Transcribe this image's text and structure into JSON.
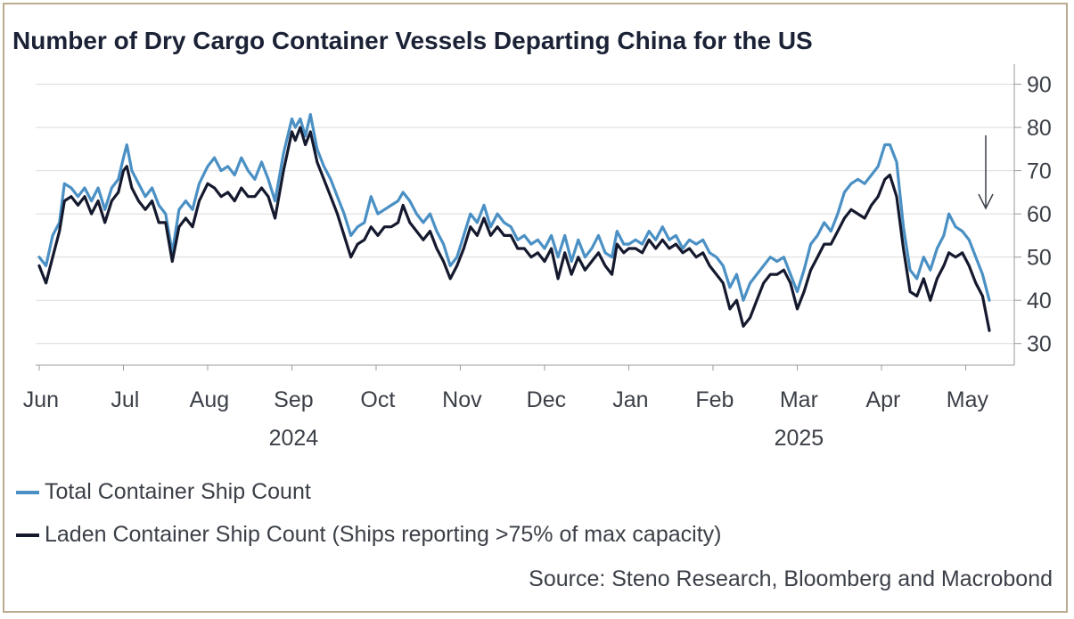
{
  "chart_data": {
    "type": "line",
    "title": "Number of Dry Cargo Container Vessels Departing China for the US",
    "source": "Source: Steno Research, Bloomberg and Macrobond",
    "ylim": [
      25,
      93
    ],
    "y_ticks": [
      30,
      40,
      50,
      60,
      70,
      80,
      90
    ],
    "x_ticks": [
      "Jun",
      "Jul",
      "Aug",
      "Sep",
      "Oct",
      "Nov",
      "Dec",
      "Jan",
      "Feb",
      "Mar",
      "Apr",
      "May"
    ],
    "year_labels": [
      {
        "label": "2024",
        "month_index": 3
      },
      {
        "label": "2025",
        "month_index": 9
      }
    ],
    "x_unit": "months since Jun 1, 2024",
    "series": [
      {
        "name": "Total Container Ship Count",
        "color": "#4a90c4",
        "points": [
          [
            0.0,
            50
          ],
          [
            0.08,
            48
          ],
          [
            0.16,
            55
          ],
          [
            0.24,
            58
          ],
          [
            0.3,
            67
          ],
          [
            0.38,
            66
          ],
          [
            0.46,
            64
          ],
          [
            0.54,
            66
          ],
          [
            0.62,
            63
          ],
          [
            0.7,
            66
          ],
          [
            0.78,
            61
          ],
          [
            0.86,
            66
          ],
          [
            0.94,
            68
          ],
          [
            1.0,
            73
          ],
          [
            1.04,
            76
          ],
          [
            1.1,
            70
          ],
          [
            1.18,
            67
          ],
          [
            1.26,
            64
          ],
          [
            1.34,
            66
          ],
          [
            1.42,
            62
          ],
          [
            1.5,
            60
          ],
          [
            1.58,
            51
          ],
          [
            1.66,
            61
          ],
          [
            1.74,
            63
          ],
          [
            1.82,
            61
          ],
          [
            1.9,
            67
          ],
          [
            2.0,
            71
          ],
          [
            2.08,
            73
          ],
          [
            2.16,
            70
          ],
          [
            2.24,
            71
          ],
          [
            2.32,
            69
          ],
          [
            2.4,
            73
          ],
          [
            2.48,
            70
          ],
          [
            2.56,
            68
          ],
          [
            2.64,
            72
          ],
          [
            2.72,
            68
          ],
          [
            2.8,
            63
          ],
          [
            2.9,
            74
          ],
          [
            3.0,
            82
          ],
          [
            3.04,
            80
          ],
          [
            3.1,
            82
          ],
          [
            3.16,
            78
          ],
          [
            3.22,
            83
          ],
          [
            3.3,
            75
          ],
          [
            3.38,
            71
          ],
          [
            3.46,
            68
          ],
          [
            3.54,
            64
          ],
          [
            3.62,
            60
          ],
          [
            3.7,
            55
          ],
          [
            3.78,
            57
          ],
          [
            3.86,
            58
          ],
          [
            3.94,
            64
          ],
          [
            4.02,
            60
          ],
          [
            4.1,
            61
          ],
          [
            4.18,
            62
          ],
          [
            4.26,
            63
          ],
          [
            4.32,
            65
          ],
          [
            4.4,
            63
          ],
          [
            4.48,
            60
          ],
          [
            4.56,
            58
          ],
          [
            4.64,
            60
          ],
          [
            4.72,
            56
          ],
          [
            4.8,
            53
          ],
          [
            4.88,
            48
          ],
          [
            4.96,
            50
          ],
          [
            5.04,
            55
          ],
          [
            5.12,
            60
          ],
          [
            5.2,
            58
          ],
          [
            5.28,
            62
          ],
          [
            5.36,
            57
          ],
          [
            5.44,
            60
          ],
          [
            5.52,
            58
          ],
          [
            5.6,
            57
          ],
          [
            5.68,
            54
          ],
          [
            5.76,
            55
          ],
          [
            5.84,
            53
          ],
          [
            5.92,
            54
          ],
          [
            6.0,
            52
          ],
          [
            6.08,
            55
          ],
          [
            6.16,
            50
          ],
          [
            6.24,
            55
          ],
          [
            6.32,
            49
          ],
          [
            6.4,
            54
          ],
          [
            6.48,
            50
          ],
          [
            6.56,
            52
          ],
          [
            6.64,
            55
          ],
          [
            6.72,
            51
          ],
          [
            6.8,
            50
          ],
          [
            6.86,
            56
          ],
          [
            6.94,
            53
          ],
          [
            7.0,
            53
          ],
          [
            7.08,
            54
          ],
          [
            7.16,
            53
          ],
          [
            7.24,
            56
          ],
          [
            7.32,
            54
          ],
          [
            7.4,
            57
          ],
          [
            7.48,
            54
          ],
          [
            7.56,
            55
          ],
          [
            7.64,
            52
          ],
          [
            7.72,
            54
          ],
          [
            7.8,
            53
          ],
          [
            7.88,
            54
          ],
          [
            7.96,
            51
          ],
          [
            8.04,
            50
          ],
          [
            8.12,
            48
          ],
          [
            8.2,
            43
          ],
          [
            8.28,
            46
          ],
          [
            8.36,
            40
          ],
          [
            8.44,
            44
          ],
          [
            8.52,
            46
          ],
          [
            8.6,
            48
          ],
          [
            8.68,
            50
          ],
          [
            8.76,
            49
          ],
          [
            8.84,
            50
          ],
          [
            8.92,
            46
          ],
          [
            9.0,
            42
          ],
          [
            9.08,
            47
          ],
          [
            9.16,
            53
          ],
          [
            9.24,
            55
          ],
          [
            9.32,
            58
          ],
          [
            9.4,
            56
          ],
          [
            9.48,
            60
          ],
          [
            9.56,
            65
          ],
          [
            9.64,
            67
          ],
          [
            9.72,
            68
          ],
          [
            9.8,
            67
          ],
          [
            9.88,
            69
          ],
          [
            9.96,
            71
          ],
          [
            10.04,
            76
          ],
          [
            10.1,
            76
          ],
          [
            10.18,
            72
          ],
          [
            10.26,
            57
          ],
          [
            10.34,
            47
          ],
          [
            10.42,
            45
          ],
          [
            10.5,
            50
          ],
          [
            10.58,
            47
          ],
          [
            10.66,
            52
          ],
          [
            10.74,
            55
          ],
          [
            10.8,
            60
          ],
          [
            10.88,
            57
          ],
          [
            10.96,
            56
          ],
          [
            11.04,
            54
          ],
          [
            11.12,
            50
          ],
          [
            11.2,
            46
          ],
          [
            11.28,
            40
          ]
        ]
      },
      {
        "name": "Laden Container Ship Count (Ships reporting >75% of max capacity)",
        "color": "#15192e",
        "points": [
          [
            0.0,
            48
          ],
          [
            0.08,
            44
          ],
          [
            0.16,
            50
          ],
          [
            0.24,
            56
          ],
          [
            0.3,
            63
          ],
          [
            0.38,
            64
          ],
          [
            0.46,
            62
          ],
          [
            0.54,
            64
          ],
          [
            0.62,
            60
          ],
          [
            0.7,
            63
          ],
          [
            0.78,
            58
          ],
          [
            0.86,
            63
          ],
          [
            0.94,
            65
          ],
          [
            1.0,
            70
          ],
          [
            1.04,
            71
          ],
          [
            1.1,
            66
          ],
          [
            1.18,
            63
          ],
          [
            1.26,
            61
          ],
          [
            1.34,
            63
          ],
          [
            1.42,
            58
          ],
          [
            1.5,
            58
          ],
          [
            1.58,
            49
          ],
          [
            1.66,
            57
          ],
          [
            1.74,
            59
          ],
          [
            1.82,
            57
          ],
          [
            1.9,
            63
          ],
          [
            2.0,
            67
          ],
          [
            2.08,
            66
          ],
          [
            2.16,
            64
          ],
          [
            2.24,
            65
          ],
          [
            2.32,
            63
          ],
          [
            2.4,
            66
          ],
          [
            2.48,
            64
          ],
          [
            2.56,
            64
          ],
          [
            2.64,
            66
          ],
          [
            2.72,
            64
          ],
          [
            2.8,
            59
          ],
          [
            2.9,
            70
          ],
          [
            3.0,
            79
          ],
          [
            3.04,
            77
          ],
          [
            3.1,
            80
          ],
          [
            3.16,
            76
          ],
          [
            3.22,
            79
          ],
          [
            3.3,
            72
          ],
          [
            3.38,
            68
          ],
          [
            3.46,
            64
          ],
          [
            3.54,
            60
          ],
          [
            3.62,
            55
          ],
          [
            3.7,
            50
          ],
          [
            3.78,
            53
          ],
          [
            3.86,
            54
          ],
          [
            3.94,
            57
          ],
          [
            4.02,
            55
          ],
          [
            4.1,
            57
          ],
          [
            4.18,
            57
          ],
          [
            4.26,
            58
          ],
          [
            4.32,
            62
          ],
          [
            4.4,
            58
          ],
          [
            4.48,
            56
          ],
          [
            4.56,
            54
          ],
          [
            4.64,
            56
          ],
          [
            4.72,
            52
          ],
          [
            4.8,
            49
          ],
          [
            4.88,
            45
          ],
          [
            4.96,
            48
          ],
          [
            5.04,
            52
          ],
          [
            5.12,
            57
          ],
          [
            5.2,
            55
          ],
          [
            5.28,
            59
          ],
          [
            5.36,
            55
          ],
          [
            5.44,
            57
          ],
          [
            5.52,
            55
          ],
          [
            5.6,
            55
          ],
          [
            5.68,
            52
          ],
          [
            5.76,
            52
          ],
          [
            5.84,
            50
          ],
          [
            5.92,
            51
          ],
          [
            6.0,
            49
          ],
          [
            6.08,
            52
          ],
          [
            6.16,
            45
          ],
          [
            6.24,
            51
          ],
          [
            6.32,
            46
          ],
          [
            6.4,
            50
          ],
          [
            6.48,
            47
          ],
          [
            6.56,
            49
          ],
          [
            6.64,
            51
          ],
          [
            6.72,
            48
          ],
          [
            6.8,
            46
          ],
          [
            6.86,
            53
          ],
          [
            6.94,
            51
          ],
          [
            7.0,
            52
          ],
          [
            7.08,
            52
          ],
          [
            7.16,
            51
          ],
          [
            7.24,
            54
          ],
          [
            7.32,
            52
          ],
          [
            7.4,
            54
          ],
          [
            7.48,
            52
          ],
          [
            7.56,
            53
          ],
          [
            7.64,
            51
          ],
          [
            7.72,
            52
          ],
          [
            7.8,
            50
          ],
          [
            7.88,
            51
          ],
          [
            7.96,
            48
          ],
          [
            8.04,
            46
          ],
          [
            8.12,
            44
          ],
          [
            8.2,
            38
          ],
          [
            8.28,
            40
          ],
          [
            8.36,
            34
          ],
          [
            8.44,
            36
          ],
          [
            8.52,
            40
          ],
          [
            8.6,
            44
          ],
          [
            8.68,
            46
          ],
          [
            8.76,
            46
          ],
          [
            8.84,
            47
          ],
          [
            8.92,
            44
          ],
          [
            9.0,
            38
          ],
          [
            9.08,
            42
          ],
          [
            9.16,
            47
          ],
          [
            9.24,
            50
          ],
          [
            9.32,
            53
          ],
          [
            9.4,
            53
          ],
          [
            9.48,
            56
          ],
          [
            9.56,
            59
          ],
          [
            9.64,
            61
          ],
          [
            9.72,
            60
          ],
          [
            9.8,
            59
          ],
          [
            9.88,
            62
          ],
          [
            9.96,
            64
          ],
          [
            10.04,
            68
          ],
          [
            10.1,
            69
          ],
          [
            10.18,
            64
          ],
          [
            10.26,
            52
          ],
          [
            10.34,
            42
          ],
          [
            10.42,
            41
          ],
          [
            10.5,
            45
          ],
          [
            10.58,
            40
          ],
          [
            10.66,
            45
          ],
          [
            10.74,
            48
          ],
          [
            10.8,
            51
          ],
          [
            10.88,
            50
          ],
          [
            10.96,
            51
          ],
          [
            11.04,
            48
          ],
          [
            11.12,
            44
          ],
          [
            11.2,
            41
          ],
          [
            11.28,
            33
          ]
        ]
      }
    ]
  }
}
